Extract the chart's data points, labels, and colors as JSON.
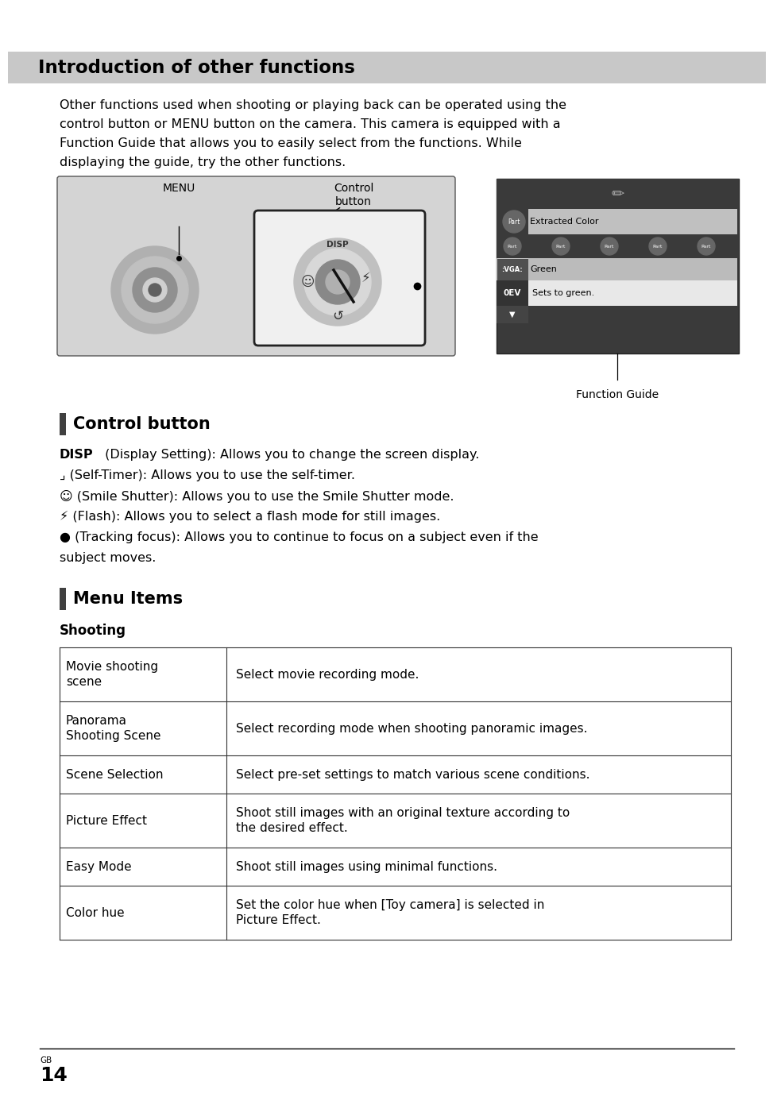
{
  "title": "Introduction of other functions",
  "title_bg": "#c8c8c8",
  "bg_color": "#ffffff",
  "intro_lines": [
    "Other functions used when shooting or playing back can be operated using the",
    "control button or MENU button on the camera. This camera is equipped with a",
    "Function Guide that allows you to easily select from the functions. While",
    "displaying the guide, try the other functions."
  ],
  "section1_title": "Control button",
  "control_lines": [
    {
      "bold": "DISP",
      "rest": " (Display Setting): Allows you to change the screen display."
    },
    {
      "symbol": "⌟",
      "rest": " (Self-Timer): Allows you to use the self-timer."
    },
    {
      "symbol": "☺",
      "rest": " (Smile Shutter): Allows you to use the Smile Shutter mode."
    },
    {
      "symbol": "☇",
      "rest": " (Flash): Allows you to select a flash mode for still images."
    },
    {
      "symbol": "●",
      "rest": " (Tracking focus): Allows you to continue to focus on a subject even if the"
    }
  ],
  "tracking_line2": "subject moves.",
  "section2_title": "Menu Items",
  "shooting_label": "Shooting",
  "table_rows": [
    {
      "col1": "Movie shooting\nscene",
      "col2": "Select movie recording mode."
    },
    {
      "col1": "Panorama\nShooting Scene",
      "col2": "Select recording mode when shooting panoramic images."
    },
    {
      "col1": "Scene Selection",
      "col2": "Select pre-set settings to match various scene conditions."
    },
    {
      "col1": "Picture Effect",
      "col2": "Shoot still images with an original texture according to\nthe desired effect."
    },
    {
      "col1": "Easy Mode",
      "col2": "Shoot still images using minimal functions."
    },
    {
      "col1": "Color hue",
      "col2": "Set the color hue when [Toy camera] is selected in\nPicture Effect."
    }
  ],
  "page_number": "14",
  "gb_label": "GB"
}
